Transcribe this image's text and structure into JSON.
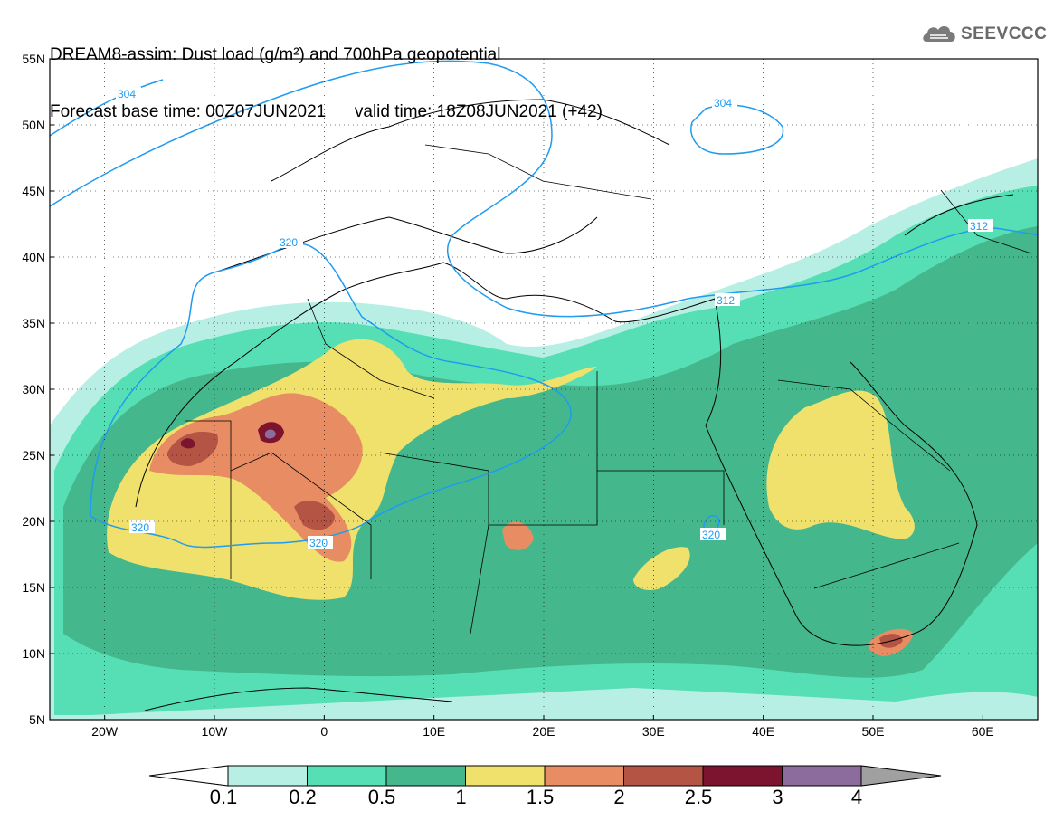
{
  "header": {
    "title_line1": "DREAM8-assim: Dust load (g/m²) and 700hPa geopotential",
    "title_line2": "Forecast base time: 00Z07JUN2021      valid time: 18Z08JUN2021 (+42)"
  },
  "logo": {
    "text": "SEEVCCC",
    "icon": "cloud-logo-icon"
  },
  "map": {
    "lat_labels": [
      "55N",
      "50N",
      "45N",
      "40N",
      "35N",
      "30N",
      "25N",
      "20N",
      "15N",
      "10N",
      "5N"
    ],
    "lon_labels": [
      "20W",
      "10W",
      "0",
      "10E",
      "20E",
      "30E",
      "40E",
      "50E",
      "60E"
    ],
    "contour_labels": [
      "304",
      "304",
      "320",
      "320",
      "320",
      "312",
      "312",
      "320"
    ],
    "contour_color": "#1f9bf0",
    "lat_range": [
      5,
      55
    ],
    "lon_range": [
      -25,
      65
    ]
  },
  "legend": {
    "labels": [
      "0.1",
      "0.2",
      "0.5",
      "1",
      "1.5",
      "2",
      "2.5",
      "3",
      "4"
    ],
    "colors": [
      "#b8efe4",
      "#56dfb4",
      "#44b88c",
      "#f0e06c",
      "#e88c64",
      "#b45444",
      "#7c1430",
      "#8c6c9c",
      "#a0a0a0"
    ]
  }
}
